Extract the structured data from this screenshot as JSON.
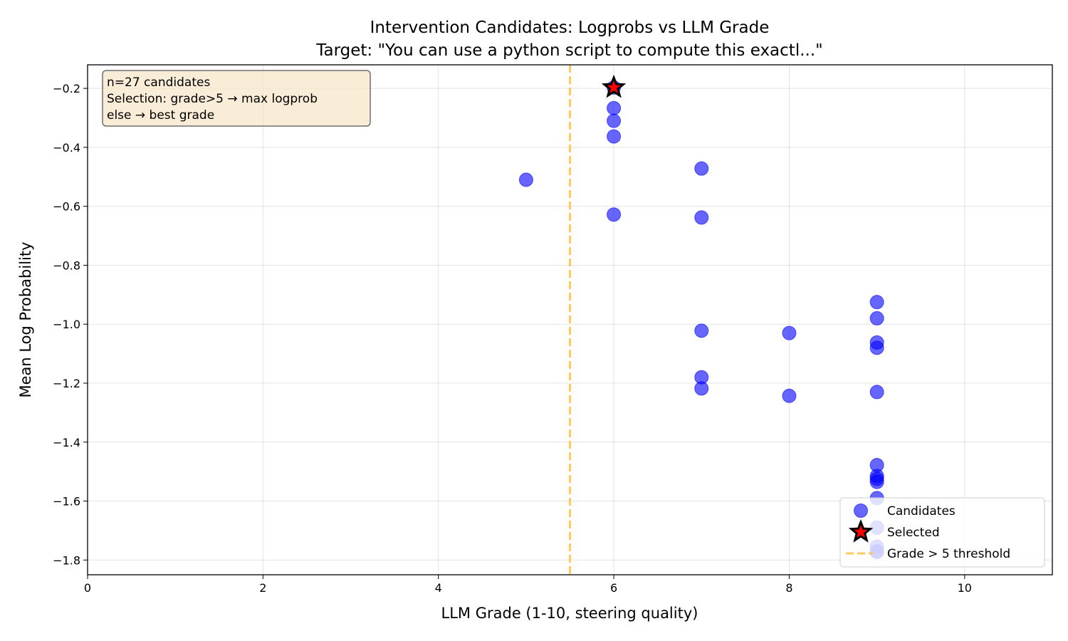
{
  "chart_data": {
    "type": "scatter",
    "title": "Intervention Candidates: Logprobs vs LLM Grade",
    "subtitle": "Target: \"You can use a python script to compute this exactl...\"",
    "xlabel": "LLM Grade (1-10, steering quality)",
    "ylabel": "Mean Log Probability",
    "xlim": [
      0,
      11
    ],
    "ylim": [
      -1.85,
      -0.12
    ],
    "xticks": [
      0,
      2,
      4,
      6,
      8,
      10
    ],
    "xtick_labels": [
      "0",
      "2",
      "4",
      "6",
      "8",
      "10"
    ],
    "yticks": [
      -0.2,
      -0.4,
      -0.6,
      -0.8,
      -1.0,
      -1.2,
      -1.4,
      -1.6,
      -1.8
    ],
    "ytick_labels": [
      "−0.2",
      "−0.4",
      "−0.6",
      "−0.8",
      "−1.0",
      "−1.2",
      "−1.4",
      "−1.6",
      "−1.8"
    ],
    "grid": true,
    "legend_position": "bottom-right",
    "annotation": {
      "lines": [
        "n=27 candidates",
        "Selection: grade>5 → max logprob",
        "else → best grade"
      ]
    },
    "threshold": {
      "name": "Grade > 5 threshold",
      "x": 5.5,
      "color": "#ffbf40"
    },
    "series": [
      {
        "name": "Candidates",
        "color": "#0000ff",
        "points": [
          {
            "x": 5,
            "y": -0.51
          },
          {
            "x": 6,
            "y": -0.197
          },
          {
            "x": 6,
            "y": -0.267
          },
          {
            "x": 6,
            "y": -0.31
          },
          {
            "x": 6,
            "y": -0.363
          },
          {
            "x": 6,
            "y": -0.628
          },
          {
            "x": 7,
            "y": -0.472
          },
          {
            "x": 7,
            "y": -0.638
          },
          {
            "x": 7,
            "y": -1.022
          },
          {
            "x": 7,
            "y": -1.18
          },
          {
            "x": 7,
            "y": -1.218
          },
          {
            "x": 8,
            "y": -1.03
          },
          {
            "x": 8,
            "y": -1.243
          },
          {
            "x": 9,
            "y": -0.925
          },
          {
            "x": 9,
            "y": -0.98
          },
          {
            "x": 9,
            "y": -1.062
          },
          {
            "x": 9,
            "y": -1.08
          },
          {
            "x": 9,
            "y": -1.23
          },
          {
            "x": 9,
            "y": -1.478
          },
          {
            "x": 9,
            "y": -1.515
          },
          {
            "x": 9,
            "y": -1.525
          },
          {
            "x": 9,
            "y": -1.535
          },
          {
            "x": 9,
            "y": -1.59
          },
          {
            "x": 9,
            "y": -1.69
          },
          {
            "x": 9,
            "y": -1.755
          },
          {
            "x": 9,
            "y": -1.77
          },
          {
            "x": 9,
            "y": -1.773
          }
        ]
      },
      {
        "name": "Selected",
        "color": "#ff0000",
        "points": [
          {
            "x": 6,
            "y": -0.197
          }
        ]
      }
    ]
  }
}
